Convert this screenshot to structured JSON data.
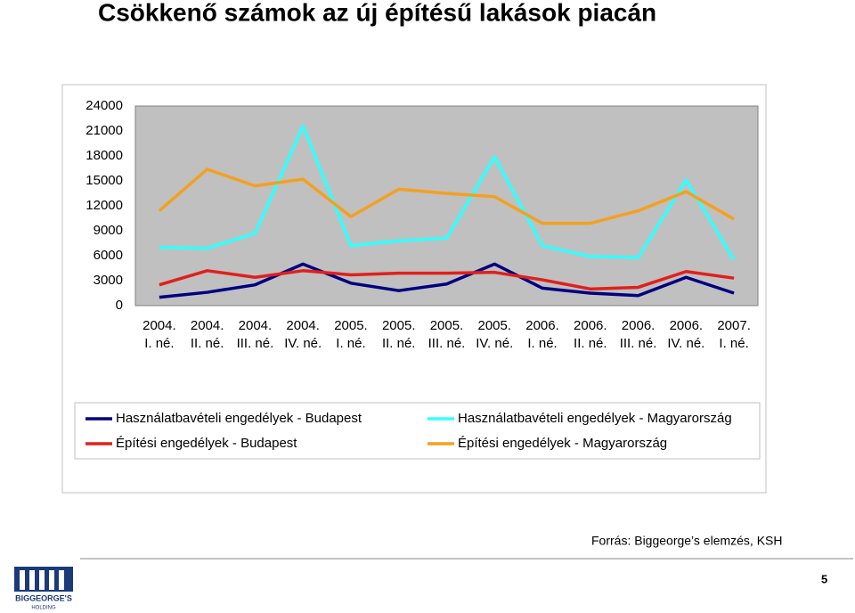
{
  "title": "Csökkenő számok az új építésű lakások piacán",
  "source": "Forrás: Biggeorge’s elemzés, KSH",
  "page_number": "5",
  "logo": {
    "line1": "BIGGEORGE'S",
    "line2": "HOLDING"
  },
  "chart_data": {
    "type": "line",
    "categories": [
      "2004. I. né.",
      "2004. II. né.",
      "2004. III. né.",
      "2004. IV. né.",
      "2005. I. né.",
      "2005. II. né.",
      "2005. III. né.",
      "2005. IV. né.",
      "2006. I. né.",
      "2006. II. né.",
      "2006. III. né.",
      "2006. IV. né.",
      "2007. I. né."
    ],
    "series": [
      {
        "name": "Használatbavételi engedélyek - Budapest",
        "color": "#000080",
        "values": [
          1000,
          1600,
          2500,
          5000,
          2700,
          1800,
          2600,
          5000,
          2100,
          1500,
          1200,
          3400,
          1500
        ]
      },
      {
        "name": "Használatbavételi engedélyek - Magyarország",
        "color": "#33ffff",
        "values": [
          7000,
          6900,
          8700,
          21600,
          7200,
          7800,
          8100,
          17900,
          7200,
          5900,
          5800,
          15100,
          5500
        ]
      },
      {
        "name": "Építési engedélyek - Budapest",
        "color": "#e0201b",
        "values": [
          2500,
          4200,
          3400,
          4200,
          3700,
          3900,
          3900,
          4000,
          3100,
          2000,
          2200,
          4100,
          3300
        ]
      },
      {
        "name": "Építési engedélyek - Magyarország",
        "color": "#f4a020",
        "values": [
          11400,
          16400,
          14400,
          15200,
          10700,
          14000,
          13500,
          13100,
          9900,
          9900,
          11400,
          13700,
          10400
        ]
      }
    ],
    "ylim": [
      0,
      24000
    ],
    "yticks": [
      0,
      3000,
      6000,
      9000,
      12000,
      15000,
      18000,
      21000,
      24000
    ],
    "grid": false
  }
}
